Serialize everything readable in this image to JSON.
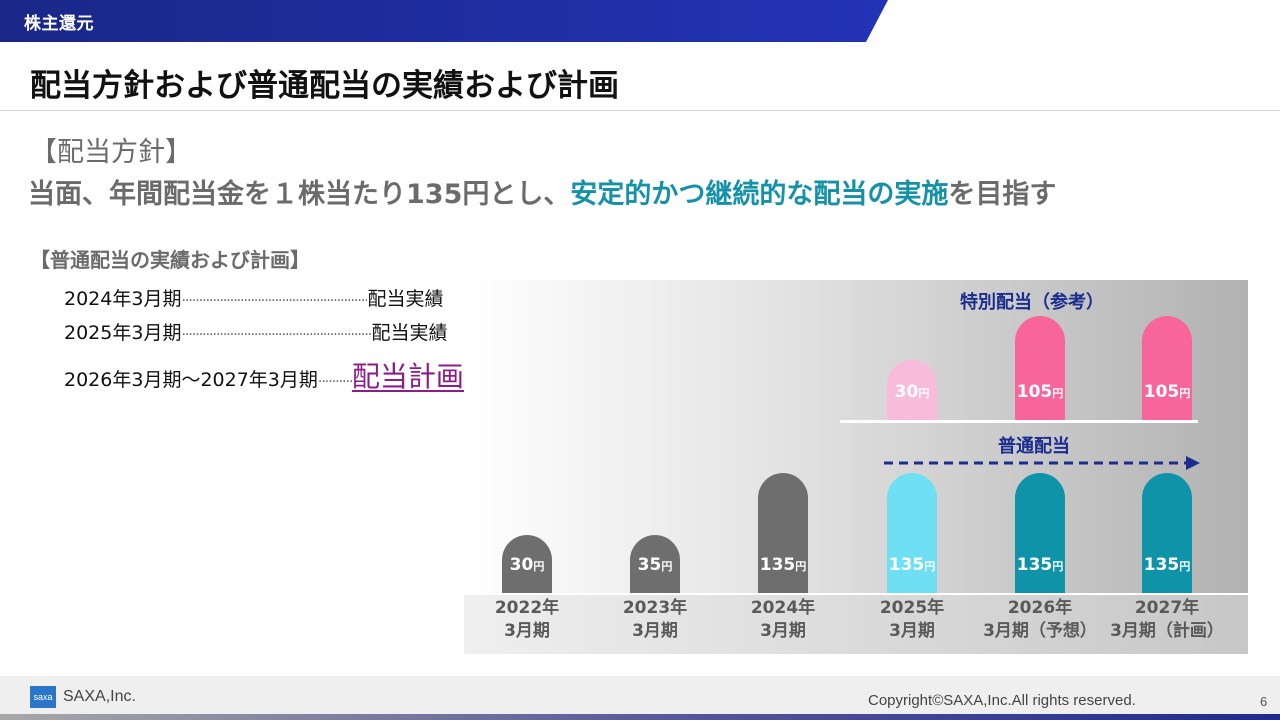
{
  "header": {
    "section": "株主還元",
    "title": "配当方針および普通配当の実績および計画"
  },
  "policy": {
    "heading": "【配当方針】",
    "pre": "当面、年間配当金を１株当たり135円とし、",
    "highlight": "安定的かつ継続的な配当の実施",
    "post": "を目指す"
  },
  "record": {
    "heading": "【普通配当の実績および計画】",
    "rows": [
      {
        "period": "2024年3月期",
        "value": "配当実績　135円"
      },
      {
        "period": "2025年3月期",
        "value": "配当実績　135円"
      },
      {
        "period": "2026年3月期～2027年3月期",
        "value": "配当計画　135円"
      }
    ]
  },
  "chart": {
    "special_label": "特別配当（参考）",
    "ordinary_label": "普通配当",
    "unit": "円",
    "colors": {
      "past": "#6e6e6e",
      "y2025_ordinary": "#6fe0f4",
      "plan_ordinary": "#0e93a8",
      "y2025_special": "#f9bbdb",
      "plan_special": "#f7659b",
      "label_blue": "#1b2d8f",
      "highlight_teal": "#1592a8",
      "plan_text_purple": "#8c1c86"
    }
  },
  "chart_data": {
    "type": "bar",
    "categories": [
      "2022年\n3月期",
      "2023年\n3月期",
      "2024年\n3月期",
      "2025年\n3月期",
      "2026年\n3月期（予想）",
      "2027年\n3月期（計画）"
    ],
    "series": [
      {
        "name": "普通配当",
        "values": [
          30,
          35,
          135,
          135,
          135,
          135
        ]
      },
      {
        "name": "特別配当（参考）",
        "values": [
          null,
          null,
          null,
          30,
          105,
          105
        ]
      }
    ],
    "value_labels": {
      "ordinary": [
        "30",
        "35",
        "135",
        "135",
        "135",
        "135"
      ],
      "special": [
        "",
        "",
        "",
        "30",
        "105",
        "105"
      ]
    }
  },
  "footer": {
    "logo": "saxa",
    "company": "SAXA,Inc.",
    "copyright": "Copyright©SAXA,Inc.All rights reserved.",
    "page": "6"
  }
}
